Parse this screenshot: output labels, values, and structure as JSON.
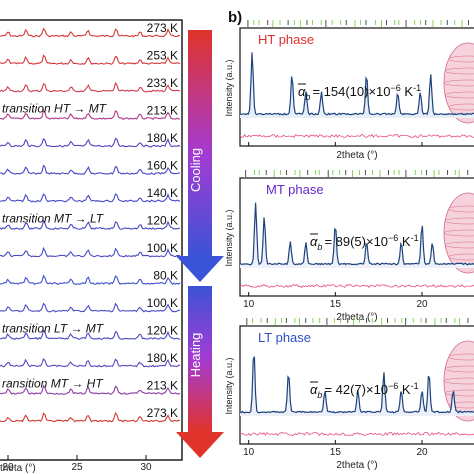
{
  "left_panel": {
    "temperature_labels": [
      "273 K",
      "253 K",
      "233 K",
      "213 K",
      "180 K",
      "160 K",
      "140 K",
      "120 K",
      "100 K",
      "80 K",
      "100 K",
      "120 K",
      "180 K",
      "213 K",
      "273 K"
    ],
    "transition_labels": [
      {
        "text": "transition HT → MT",
        "row": 3
      },
      {
        "text": "transition MT → LT",
        "row": 7
      },
      {
        "text": "transition LT → MT",
        "row": 11
      },
      {
        "text": "ransition MT → HT",
        "row": 13
      }
    ],
    "x_tick_labels": [
      "20",
      "25",
      "30"
    ],
    "x_axis_label": "theta (°)",
    "arrows": [
      {
        "label": "Cooling"
      },
      {
        "label": "Heating"
      }
    ]
  },
  "right_panel": {
    "panel_letter": "b)",
    "plots": [
      {
        "phase_label": "HT phase",
        "phase_color": "#e0302a",
        "alpha_prefix": "= 154(10)×10",
        "alpha_exp": "−6",
        "alpha_unit": " K",
        "alpha_unit_exp": "-1",
        "alpha_symbol": "α",
        "alpha_sub": "b",
        "ylabel": "Intensity (a.u.)",
        "xlabel": "2theta (°)",
        "show_x_ticks": false
      },
      {
        "phase_label": "MT phase",
        "phase_color": "#6a28c8",
        "alpha_prefix": "= 89(5)×10",
        "alpha_exp": "−6",
        "alpha_unit": " K",
        "alpha_unit_exp": "-1",
        "alpha_symbol": "α",
        "alpha_sub": "b",
        "ylabel": "Intensity (a.u.)",
        "xlabel": "2theta (°)",
        "show_x_ticks": true
      },
      {
        "phase_label": "LT phase",
        "phase_color": "#2f4fc8",
        "alpha_prefix": "= 42(7)×10",
        "alpha_exp": "−6",
        "alpha_unit": " K",
        "alpha_unit_exp": "-1",
        "alpha_symbol": "α",
        "alpha_sub": "b",
        "ylabel": "Intensity (a.u.)",
        "xlabel": "2theta (°)",
        "show_x_ticks": true
      }
    ],
    "x_tick_labels": [
      "10",
      "15",
      "20"
    ]
  },
  "chart_data": [
    {
      "type": "line",
      "title": "",
      "xlabel": "theta (°)",
      "ylabel": "",
      "xlim": [
        17,
        33
      ],
      "x_ticks": [
        20,
        25,
        30
      ],
      "series": [],
      "annotations": [
        "Cooling",
        "Heating",
        "273 K",
        "253 K",
        "233 K",
        "213 K",
        "180 K",
        "160 K",
        "140 K",
        "120 K",
        "100 K",
        "80 K",
        "100 K",
        "120 K",
        "180 K",
        "213 K",
        "273 K"
      ],
      "grid": false
    },
    {
      "type": "line",
      "xlabel": "2theta (°)",
      "ylabel": "Intensity (a.u.)",
      "xlim": [
        9.5,
        23
      ],
      "x_ticks": [
        10,
        15,
        20
      ],
      "series": [
        {
          "name": "HT phase",
          "peaks": [
            10.2,
            12.5,
            13.3,
            14.2,
            16.8,
            18.6,
            19.9,
            20.5
          ]
        },
        {
          "name": "MT phase",
          "peaks": [
            10.4,
            10.9,
            12.4,
            13.3,
            15.0,
            16.8,
            18.8,
            20.0,
            20.6
          ]
        },
        {
          "name": "LT phase",
          "peaks": [
            10.3,
            12.3,
            14.4,
            16.3,
            17.8,
            18.8,
            20.0,
            20.4,
            21.8
          ]
        }
      ],
      "grid": false
    }
  ]
}
